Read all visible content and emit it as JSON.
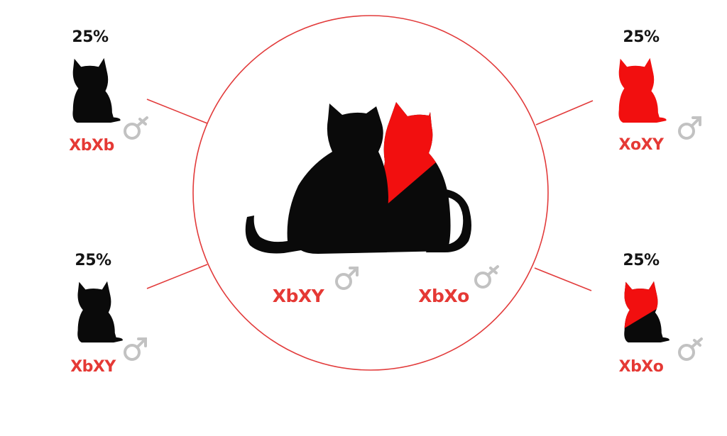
{
  "colors": {
    "red": "#f20f0f",
    "black": "#0a0a0a",
    "text_red": "#e53935",
    "symbol_grey": "#c2c2c2",
    "circle_line": "#e23b3b"
  },
  "parents": {
    "male": {
      "genotype": "XbXY",
      "sex_icon": "male-symbol-icon",
      "color": "black"
    },
    "female": {
      "genotype": "XbXo",
      "sex_icon": "female-symbol-icon",
      "color": "black-red"
    }
  },
  "offspring": [
    {
      "id": "top-left",
      "percent": "25%",
      "genotype": "XbXb",
      "color": "black",
      "sex_icon": "female-symbol-icon"
    },
    {
      "id": "bottom-left",
      "percent": "25%",
      "genotype": "XbXY",
      "color": "black",
      "sex_icon": "male-symbol-icon"
    },
    {
      "id": "top-right",
      "percent": "25%",
      "genotype": "XoXY",
      "color": "red",
      "sex_icon": "male-symbol-icon"
    },
    {
      "id": "bottom-right",
      "percent": "25%",
      "genotype": "XbXo",
      "color": "black-red",
      "sex_icon": "female-symbol-icon"
    }
  ]
}
